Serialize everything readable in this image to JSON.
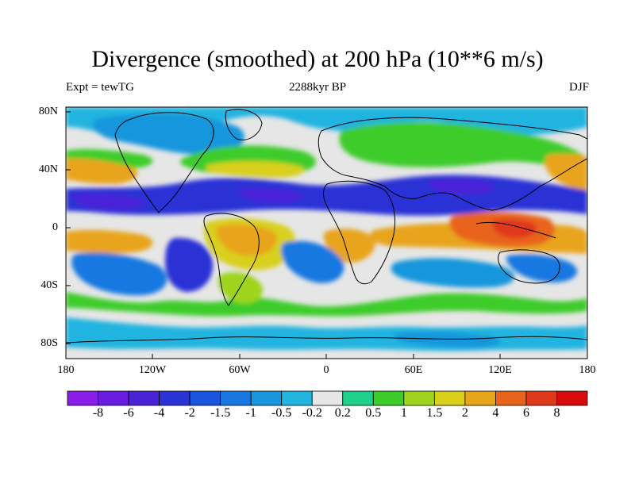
{
  "title": "Divergence (smoothed) at 200 hPa (10**6 m/s)",
  "subtitle_left": "Expt = tewTG",
  "subtitle_center": "2288kyr BP",
  "subtitle_right": "DJF",
  "y_axis_ticks": [
    "80N",
    "40N",
    "0",
    "40S",
    "80S"
  ],
  "x_axis_ticks": [
    "180",
    "120W",
    "60W",
    "0",
    "60E",
    "120E",
    "180"
  ],
  "colorbar": {
    "labels": [
      "-8",
      "-6",
      "-4",
      "-2",
      "-1.5",
      "-1",
      "-0.5",
      "-0.2",
      "0.2",
      "0.5",
      "1",
      "1.5",
      "2",
      "4",
      "6",
      "8"
    ],
    "colors": [
      "#8a1ee8",
      "#6a1de0",
      "#4a22d8",
      "#2a33d6",
      "#1a55e0",
      "#1878e0",
      "#1996dc",
      "#22b4e0",
      "#e6e6e6",
      "#1ed08a",
      "#3ccc2a",
      "#9ed41e",
      "#d8d01a",
      "#e8a41a",
      "#e8641a",
      "#e0381a",
      "#d80a0a"
    ]
  },
  "map": {
    "background_color": "#e6e6e6",
    "bands": [
      {
        "region": "tropical-north-pacific",
        "level": "-4",
        "color": "#2a33d6"
      },
      {
        "region": "tropical-south-pacific",
        "level": "4",
        "color": "#e8a41a"
      },
      {
        "region": "maritime-continent",
        "level": "6",
        "color": "#e8641a"
      },
      {
        "region": "south-america",
        "level": "2",
        "color": "#d8d01a"
      },
      {
        "region": "north-midlatitudes",
        "level": "1",
        "color": "#3ccc2a"
      },
      {
        "region": "southern-ocean",
        "level": "-1",
        "color": "#1878e0"
      }
    ]
  }
}
